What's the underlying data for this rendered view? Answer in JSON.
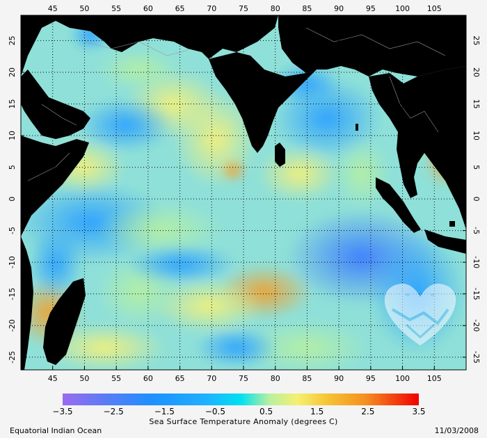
{
  "map": {
    "region_label": "Equatorial Indian Ocean",
    "date": "11/03/2008",
    "lon_ticks": [
      "45",
      "50",
      "55",
      "60",
      "65",
      "70",
      "75",
      "80",
      "85",
      "90",
      "95",
      "100",
      "105"
    ],
    "lat_ticks": [
      "25",
      "20",
      "15",
      "10",
      "5",
      "0",
      "-5",
      "-10",
      "-15",
      "-20",
      "-25"
    ],
    "lon_values": [
      45,
      50,
      55,
      60,
      65,
      70,
      75,
      80,
      85,
      90,
      95,
      100,
      105
    ],
    "lat_values": [
      25,
      20,
      15,
      10,
      5,
      0,
      -5,
      -10,
      -15,
      -20,
      -25
    ],
    "lon_range": [
      40,
      110
    ],
    "lat_range": [
      -27,
      29
    ],
    "land_color": "#000000",
    "grid": "dotted"
  },
  "colorbar": {
    "title": "Sea Surface Temperature Anomaly (degrees C)",
    "tick_labels": [
      "−3.5",
      "−2.5",
      "−1.5",
      "−0.5",
      "0.5",
      "1.5",
      "2.5",
      "3.5"
    ],
    "tick_values": [
      -3.5,
      -2.5,
      -1.5,
      -0.5,
      0.5,
      1.5,
      2.5,
      3.5
    ],
    "range": [
      -3.5,
      3.5
    ],
    "colors": [
      "#9a6cf0",
      "#5a7cf5",
      "#1e90ff",
      "#1fb0ff",
      "#00e0f0",
      "#b8f0a0",
      "#f5f070",
      "#f5c030",
      "#f59020",
      "#f55020",
      "#f00000"
    ]
  },
  "watermark": {
    "icon": "handshake-heart-logo"
  }
}
